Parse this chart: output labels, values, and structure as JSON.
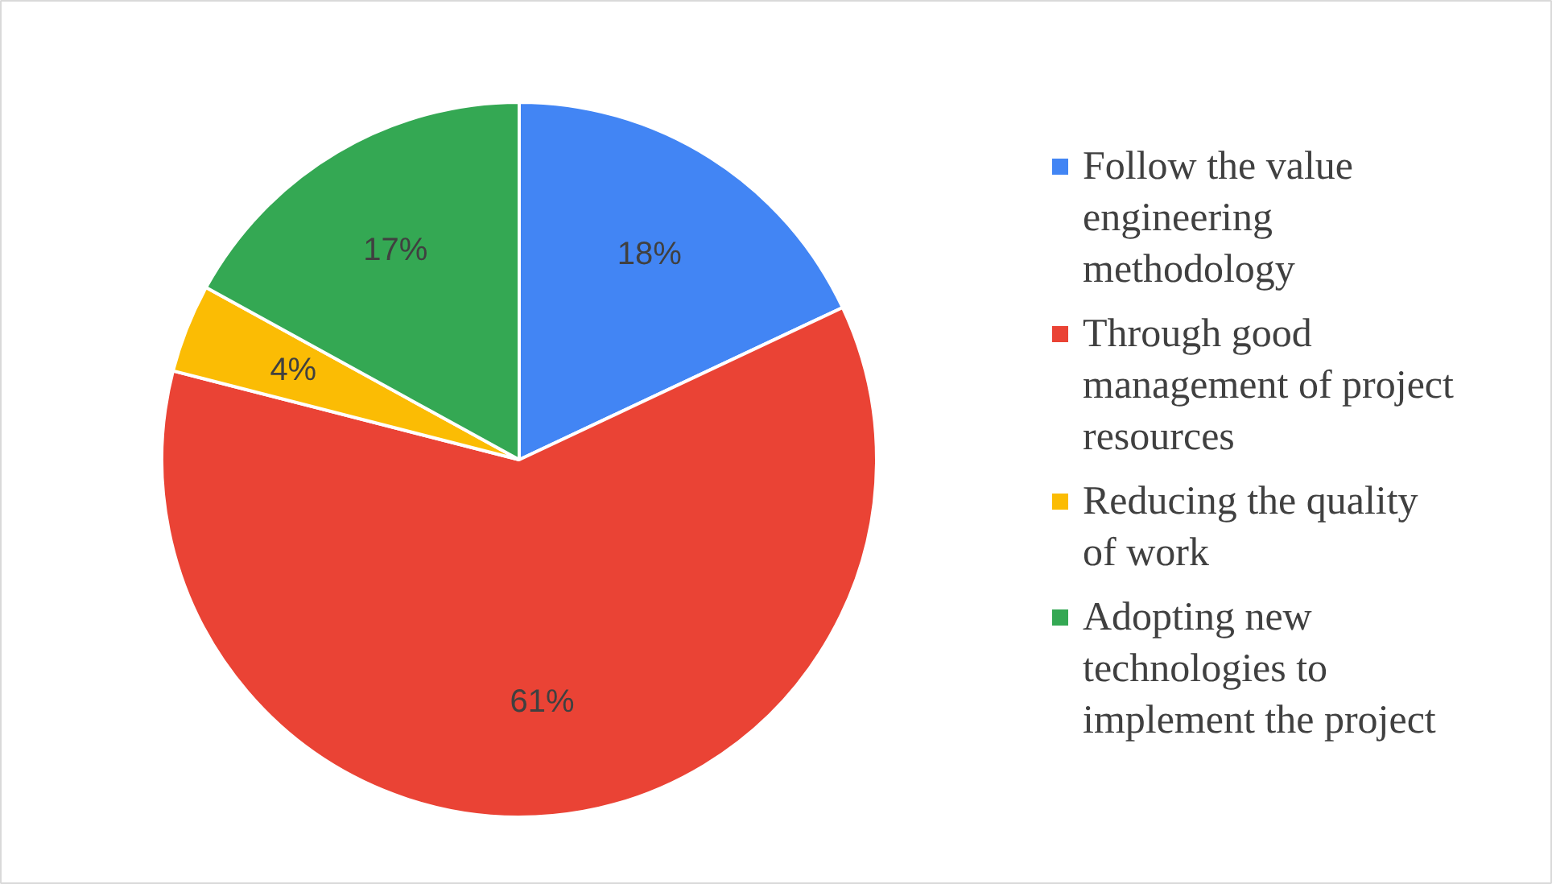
{
  "chart_data": {
    "type": "pie",
    "categories": [
      "Follow the value engineering methodology",
      "Through good management of project resources",
      "Reducing the quality of work",
      "Adopting new technologies to implement the project"
    ],
    "values": [
      18,
      61,
      4,
      17
    ],
    "colors": [
      "#4285f4",
      "#ea4335",
      "#fbbc04",
      "#34a853"
    ],
    "value_labels": [
      "18%",
      "61%",
      "4%",
      "17%"
    ],
    "legend": "right"
  }
}
